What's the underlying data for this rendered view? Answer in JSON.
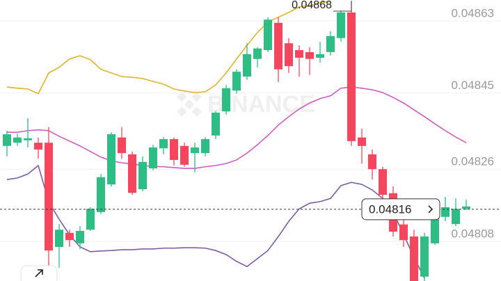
{
  "chart_data": {
    "type": "candlestick",
    "open": [
      0.048318,
      0.048326,
      0.048332,
      0.048326,
      0.048326,
      0.048066,
      0.048101,
      0.048075,
      0.048109,
      0.048153,
      0.048222,
      0.048339,
      0.048297,
      0.04821,
      0.048262,
      0.048312,
      0.048335,
      0.048318,
      0.0483,
      0.0483,
      0.048344,
      0.048404,
      0.048456,
      0.048491,
      0.048535,
      0.048557,
      0.048625,
      0.048574,
      0.048557,
      0.048552,
      0.048538,
      0.048552,
      0.048587,
      0.048651,
      0.048339,
      0.048297,
      0.04826,
      0.0482,
      0.048122,
      0.048092,
      0.047992,
      0.048075,
      0.048141,
      0.048123,
      0.048161
    ],
    "high": [
      0.048356,
      0.048349,
      0.048387,
      0.048339,
      0.048365,
      0.048123,
      0.048109,
      0.048118,
      0.048165,
      0.048248,
      0.048352,
      0.048365,
      0.048304,
      0.048292,
      0.048321,
      0.04834,
      0.048339,
      0.048326,
      0.048326,
      0.04834,
      0.048404,
      0.04847,
      0.048509,
      0.048574,
      0.048564,
      0.048639,
      0.048639,
      0.048587,
      0.048569,
      0.048564,
      0.048578,
      0.048604,
      0.048656,
      0.04868,
      0.048361,
      0.048309,
      0.048266,
      0.048217,
      0.048148,
      0.048109,
      0.048101,
      0.048161,
      0.048191,
      0.048187,
      0.048184
    ],
    "low": [
      0.048292,
      0.048318,
      0.048314,
      0.048286,
      0.047997,
      0.048014,
      0.048066,
      0.048061,
      0.048106,
      0.048148,
      0.048217,
      0.048286,
      0.048196,
      0.048205,
      0.048257,
      0.048297,
      0.048269,
      0.048266,
      0.048252,
      0.048292,
      0.048335,
      0.048396,
      0.048448,
      0.048483,
      0.048514,
      0.048552,
      0.048477,
      0.0485,
      0.048491,
      0.048495,
      0.048526,
      0.048543,
      0.048578,
      0.048318,
      0.048274,
      0.048234,
      0.048187,
      0.048092,
      0.048066,
      0.047962,
      0.047981,
      0.048071,
      0.04813,
      0.048118,
      0.048158
    ],
    "close": [
      0.048347,
      0.048339,
      0.048337,
      0.048309,
      0.048057,
      0.048109,
      0.048083,
      0.048106,
      0.048161,
      0.04824,
      0.048347,
      0.0483,
      0.048201,
      0.048278,
      0.048314,
      0.048335,
      0.048283,
      0.048271,
      0.048314,
      0.048335,
      0.048401,
      0.048462,
      0.048503,
      0.048547,
      0.048561,
      0.048633,
      0.048509,
      0.048517,
      0.048538,
      0.048535,
      0.048547,
      0.048592,
      0.048651,
      0.04833,
      0.048318,
      0.04826,
      0.048196,
      0.048104,
      0.048083,
      0.047971,
      0.048092,
      0.048153,
      0.048165,
      0.048161,
      0.048167
    ],
    "up_color": "#2ebd85",
    "down_color": "#f6465d",
    "series": [
      {
        "color": "#dfb52c",
        "values": [
          0.048465,
          0.048462,
          0.04846,
          0.048448,
          0.0485,
          0.048514,
          0.048535,
          0.048543,
          0.048533,
          0.048509,
          0.0485,
          0.048491,
          0.048489,
          0.048486,
          0.048479,
          0.048472,
          0.04846,
          0.048455,
          0.048451,
          0.048453,
          0.04847,
          0.0485,
          0.048535,
          0.048569,
          0.048601,
          0.048627,
          0.048639,
          0.048651,
          0.048665,
          0.048668,
          0.048675,
          0.048679,
          null,
          null,
          null,
          null,
          null,
          null,
          null,
          null,
          null,
          null,
          null,
          null,
          null
        ]
      },
      {
        "color": "#d05bc2",
        "values": [
          0.048352,
          0.048352,
          0.048356,
          0.048358,
          0.048356,
          0.048342,
          0.04833,
          0.048318,
          0.048304,
          0.04829,
          0.048281,
          0.048276,
          0.048273,
          0.048269,
          0.048267,
          0.048266,
          0.048264,
          0.048262,
          0.048262,
          0.048266,
          0.048269,
          0.048274,
          0.048283,
          0.0483,
          0.048321,
          0.048344,
          0.04837,
          0.048391,
          0.04841,
          0.048425,
          0.048436,
          0.048443,
          0.048462,
          0.048465,
          0.048462,
          0.048458,
          0.048451,
          0.048439,
          0.048425,
          0.048408,
          0.048391,
          0.048373,
          0.048356,
          0.04834,
          0.048326
        ]
      },
      {
        "color": "#7b5ca8",
        "values": [
          0.048234,
          0.048238,
          0.048248,
          0.048269,
          0.048179,
          0.048135,
          0.048096,
          0.048066,
          0.048054,
          0.048056,
          0.048057,
          0.048059,
          0.048059,
          0.048061,
          0.048061,
          0.048063,
          0.048063,
          0.048064,
          0.048064,
          0.048063,
          0.048057,
          0.048047,
          0.04803,
          0.048017,
          0.048037,
          0.048057,
          0.048092,
          0.04813,
          0.048161,
          0.048175,
          0.048179,
          0.048187,
          0.048219,
          0.048227,
          0.048222,
          0.048208,
          0.048187,
          0.048153,
          0.048097,
          0.04804,
          0.047988,
          null,
          null,
          null,
          null
        ]
      }
    ],
    "ylim": [
      0.047981,
      0.048682
    ],
    "yticks": [
      0.04808,
      0.04826,
      0.04845,
      0.04863
    ],
    "grid": true,
    "current_price": 0.04816,
    "watermark": "BINANCE"
  }
}
